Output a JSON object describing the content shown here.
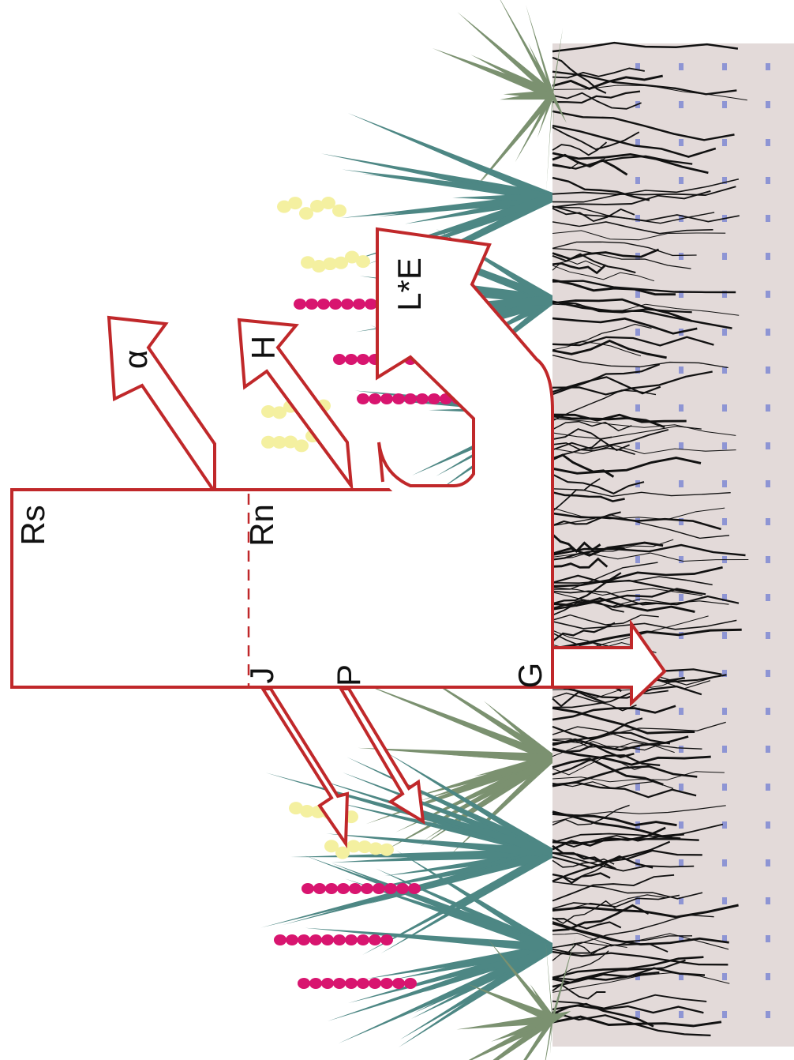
{
  "labels": [
    "Rs",
    "Rn",
    "α",
    "H",
    "L*E",
    "J",
    "P",
    "G"
  ]
}
